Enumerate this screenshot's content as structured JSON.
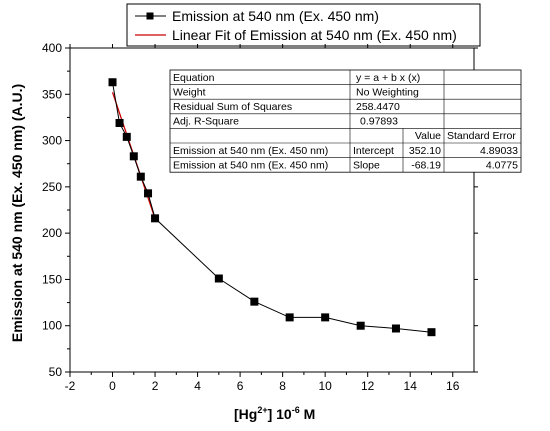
{
  "chart_data": {
    "type": "scatter",
    "xlabel": {
      "base": "[Hg",
      "sup": "2+",
      "mid": "]   10",
      "exp": "-6",
      "unit": " M"
    },
    "ylabel": "Emission at 540 nm (Ex. 450 nm) (A.U.)",
    "xlim": [
      -2,
      17
    ],
    "ylim": [
      50,
      400
    ],
    "xticks": [
      -2,
      0,
      2,
      4,
      6,
      8,
      10,
      12,
      14,
      16
    ],
    "yticks": [
      50,
      100,
      150,
      200,
      250,
      300,
      350,
      400
    ],
    "grid": false,
    "legend_position": "top-center",
    "series": [
      {
        "name": "Emission at 540 nm (Ex. 450 nm)",
        "style": "line-square-markers",
        "color": "#000000",
        "x": [
          0,
          0.33,
          0.67,
          1.0,
          1.33,
          1.67,
          2.0,
          5.0,
          6.67,
          8.33,
          10.0,
          11.67,
          13.33,
          15.0
        ],
        "y": [
          363,
          319,
          304,
          283,
          261,
          243,
          216,
          151,
          126,
          109,
          109,
          100,
          97,
          93
        ]
      },
      {
        "name": "Linear Fit of Emission at 540 nm (Ex. 450 nm)",
        "style": "line",
        "color": "#cc0000",
        "intercept": 352.1,
        "slope": -68.19,
        "x_range": [
          0,
          2.0
        ]
      }
    ],
    "fit_table": {
      "rows": [
        [
          "Equation",
          "y = a + b x (x)",
          "",
          ""
        ],
        [
          "Weight",
          "No Weighting",
          "",
          ""
        ],
        [
          "Residual Sum of Squares",
          "258.4470",
          "",
          ""
        ],
        [
          "Adj. R-Square",
          "0.97893",
          "",
          ""
        ],
        [
          "",
          "",
          "Value",
          "Standard Error"
        ],
        [
          "Emission at 540 nm (Ex. 450 nm)",
          "Intercept",
          "352.10",
          "4.89033"
        ],
        [
          "Emission at 540 nm (Ex. 450 nm)",
          "Slope",
          "-68.19",
          "4.0775"
        ]
      ]
    }
  }
}
